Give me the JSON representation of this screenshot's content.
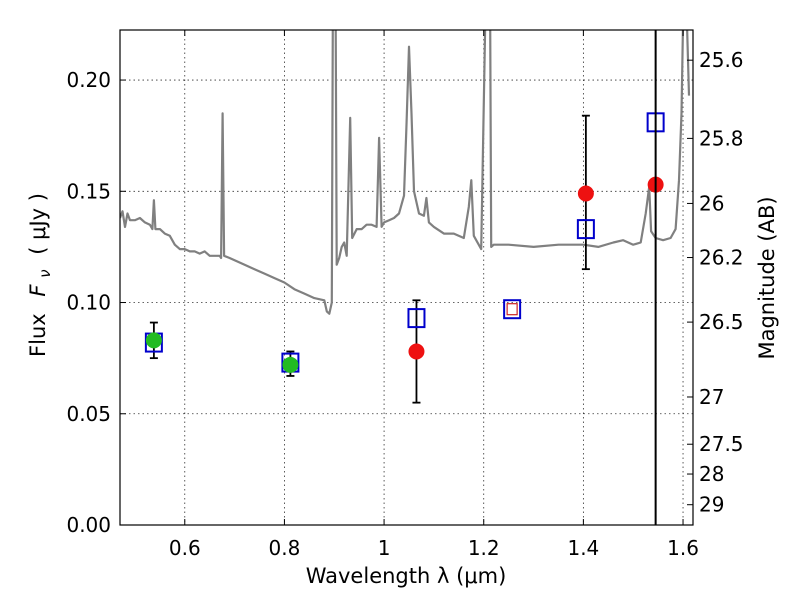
{
  "chart_data": {
    "type": "scatter",
    "xlabel": "Wavelength  λ (μm)",
    "ylabel_prefix": "Flux",
    "ylabel_symbol": "F",
    "ylabel_sub": "ν",
    "ylabel_unit": "( μJy )",
    "ylabel_right": "Magnitude (AB)",
    "xlim": [
      0.47,
      1.62
    ],
    "ylim": [
      0.0,
      0.2225
    ],
    "x_ticks": [
      {
        "value": 0.6,
        "label": "0.6"
      },
      {
        "value": 0.8,
        "label": "0.8"
      },
      {
        "value": 1.0,
        "label": "1"
      },
      {
        "value": 1.2,
        "label": "1.2"
      },
      {
        "value": 1.4,
        "label": "1.4"
      },
      {
        "value": 1.6,
        "label": "1.6"
      }
    ],
    "y_ticks": [
      {
        "value": 0.0,
        "label": "0.00"
      },
      {
        "value": 0.05,
        "label": "0.05"
      },
      {
        "value": 0.1,
        "label": "0.10"
      },
      {
        "value": 0.15,
        "label": "0.15"
      },
      {
        "value": 0.2,
        "label": "0.20"
      }
    ],
    "mag_ticks": [
      {
        "value": 25.6,
        "label": "25.6"
      },
      {
        "value": 25.8,
        "label": "25.8"
      },
      {
        "value": 26.0,
        "label": "26"
      },
      {
        "value": 26.2,
        "label": "26.2"
      },
      {
        "value": 26.5,
        "label": "26.5"
      },
      {
        "value": 27.0,
        "label": "27"
      },
      {
        "value": 27.5,
        "label": "27.5"
      },
      {
        "value": 28.0,
        "label": "28"
      },
      {
        "value": 29.0,
        "label": "29"
      }
    ],
    "grid": true,
    "vertical_line_x": 1.545,
    "colors": {
      "spectrum": "#808080",
      "green": "#22bb22",
      "red": "#ee1111",
      "blue": "#0000cc",
      "error": "#000000",
      "small_red_square": "#cc2222"
    },
    "spectrum": [
      [
        0.47,
        0.138
      ],
      [
        0.475,
        0.141
      ],
      [
        0.48,
        0.134
      ],
      [
        0.485,
        0.14
      ],
      [
        0.49,
        0.137
      ],
      [
        0.5,
        0.137
      ],
      [
        0.51,
        0.138
      ],
      [
        0.52,
        0.136
      ],
      [
        0.53,
        0.135
      ],
      [
        0.535,
        0.133
      ],
      [
        0.538,
        0.146
      ],
      [
        0.541,
        0.133
      ],
      [
        0.55,
        0.133
      ],
      [
        0.56,
        0.131
      ],
      [
        0.57,
        0.13
      ],
      [
        0.58,
        0.126
      ],
      [
        0.59,
        0.124
      ],
      [
        0.6,
        0.124
      ],
      [
        0.61,
        0.123
      ],
      [
        0.62,
        0.123
      ],
      [
        0.63,
        0.122
      ],
      [
        0.64,
        0.123
      ],
      [
        0.65,
        0.121
      ],
      [
        0.66,
        0.121
      ],
      [
        0.67,
        0.121
      ],
      [
        0.673,
        0.12
      ],
      [
        0.676,
        0.185
      ],
      [
        0.679,
        0.121
      ],
      [
        0.69,
        0.12
      ],
      [
        0.7,
        0.119
      ],
      [
        0.72,
        0.117
      ],
      [
        0.74,
        0.115
      ],
      [
        0.76,
        0.113
      ],
      [
        0.78,
        0.111
      ],
      [
        0.8,
        0.109
      ],
      [
        0.82,
        0.106
      ],
      [
        0.84,
        0.104
      ],
      [
        0.86,
        0.102
      ],
      [
        0.88,
        0.101
      ],
      [
        0.885,
        0.096
      ],
      [
        0.89,
        0.095
      ],
      [
        0.895,
        0.1
      ],
      [
        0.897,
        0.225
      ],
      [
        0.903,
        0.225
      ],
      [
        0.905,
        0.117
      ],
      [
        0.91,
        0.12
      ],
      [
        0.915,
        0.125
      ],
      [
        0.92,
        0.127
      ],
      [
        0.925,
        0.121
      ],
      [
        0.932,
        0.183
      ],
      [
        0.936,
        0.129
      ],
      [
        0.945,
        0.133
      ],
      [
        0.955,
        0.133
      ],
      [
        0.965,
        0.135
      ],
      [
        0.975,
        0.135
      ],
      [
        0.985,
        0.134
      ],
      [
        0.99,
        0.174
      ],
      [
        0.995,
        0.134
      ],
      [
        1.0,
        0.136
      ],
      [
        1.01,
        0.137
      ],
      [
        1.02,
        0.138
      ],
      [
        1.03,
        0.14
      ],
      [
        1.04,
        0.148
      ],
      [
        1.045,
        0.18
      ],
      [
        1.05,
        0.215
      ],
      [
        1.055,
        0.185
      ],
      [
        1.06,
        0.15
      ],
      [
        1.07,
        0.14
      ],
      [
        1.08,
        0.139
      ],
      [
        1.085,
        0.147
      ],
      [
        1.09,
        0.136
      ],
      [
        1.1,
        0.134
      ],
      [
        1.12,
        0.131
      ],
      [
        1.14,
        0.131
      ],
      [
        1.16,
        0.129
      ],
      [
        1.17,
        0.143
      ],
      [
        1.175,
        0.155
      ],
      [
        1.18,
        0.13
      ],
      [
        1.195,
        0.124
      ],
      [
        1.203,
        0.225
      ],
      [
        1.213,
        0.225
      ],
      [
        1.215,
        0.125
      ],
      [
        1.22,
        0.126
      ],
      [
        1.25,
        0.126
      ],
      [
        1.3,
        0.125
      ],
      [
        1.35,
        0.126
      ],
      [
        1.4,
        0.126
      ],
      [
        1.43,
        0.125
      ],
      [
        1.46,
        0.127
      ],
      [
        1.48,
        0.128
      ],
      [
        1.5,
        0.126
      ],
      [
        1.515,
        0.127
      ],
      [
        1.525,
        0.14
      ],
      [
        1.532,
        0.152
      ],
      [
        1.536,
        0.132
      ],
      [
        1.545,
        0.129
      ],
      [
        1.56,
        0.128
      ],
      [
        1.575,
        0.129
      ],
      [
        1.585,
        0.133
      ],
      [
        1.592,
        0.155
      ],
      [
        1.597,
        0.185
      ],
      [
        1.6,
        0.225
      ],
      [
        1.608,
        0.225
      ],
      [
        1.612,
        0.193
      ]
    ],
    "green_points": [
      {
        "x": 0.538,
        "y": 0.083,
        "err": 0.007
      },
      {
        "x": 0.812,
        "y": 0.072,
        "err": 0.005
      }
    ],
    "red_points": [
      {
        "x": 1.065,
        "y": 0.078,
        "err": 0.0
      },
      {
        "x": 1.405,
        "y": 0.149,
        "err": 0.0
      },
      {
        "x": 1.545,
        "y": 0.153,
        "err": 0.0
      }
    ],
    "blue_squares": [
      {
        "x": 0.538,
        "y": 0.082,
        "err": 0.0
      },
      {
        "x": 0.812,
        "y": 0.073,
        "err": 0.0
      },
      {
        "x": 1.065,
        "y": 0.093,
        "err": 0.0
      },
      {
        "x": 1.405,
        "y": 0.133,
        "err": 0.0
      },
      {
        "x": 1.545,
        "y": 0.181,
        "err": 0.0
      }
    ],
    "error_bars": [
      {
        "x": 0.538,
        "y": 0.083,
        "low": 0.075,
        "high": 0.091
      },
      {
        "x": 0.812,
        "y": 0.073,
        "low": 0.067,
        "high": 0.078
      },
      {
        "x": 1.065,
        "y": 0.093,
        "low": 0.055,
        "high": 0.101
      },
      {
        "x": 1.405,
        "y": 0.133,
        "low": 0.115,
        "high": 0.184
      }
    ],
    "small_red_square": {
      "x": 1.257,
      "y": 0.097
    },
    "blue_square_outer": {
      "x": 1.257,
      "y": 0.097
    }
  }
}
